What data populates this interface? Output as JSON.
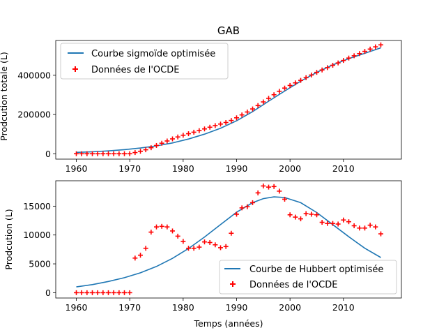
{
  "chart_data": [
    {
      "type": "line",
      "title": "GAB",
      "xlabel": "",
      "ylabel": "Prodcution totale (L)",
      "xlim": [
        1956.15,
        2020.85
      ],
      "ylim": [
        -27500,
        577500
      ],
      "xticks": [
        1960,
        1970,
        1980,
        1990,
        2000,
        2010
      ],
      "xtick_labels": [
        "1960",
        "1970",
        "1980",
        "1990",
        "2000",
        "2010"
      ],
      "yticks": [
        0,
        200000,
        400000
      ],
      "ytick_labels": [
        "0",
        "200000",
        "400000"
      ],
      "grid": false,
      "legend_position": "top-left",
      "series": [
        {
          "name": "Courbe sigmoïde optimisée",
          "style": "line",
          "color": "#1f77b4",
          "x": [
            1960,
            1963,
            1966,
            1969,
            1972,
            1975,
            1978,
            1981,
            1984,
            1987,
            1990,
            1993,
            1996,
            1999,
            2002,
            2005,
            2008,
            2011,
            2014,
            2017
          ],
          "values": [
            7000,
            10000,
            14500,
            21000,
            29000,
            40000,
            55000,
            75000,
            100000,
            130000,
            168000,
            215000,
            268000,
            320000,
            370000,
            415000,
            453000,
            485000,
            512000,
            540000
          ]
        },
        {
          "name": "Données de l'OCDE",
          "style": "marker-plus",
          "color": "#ff0000",
          "x": [
            1960,
            1961,
            1962,
            1963,
            1964,
            1965,
            1966,
            1967,
            1968,
            1969,
            1970,
            1971,
            1972,
            1973,
            1974,
            1975,
            1976,
            1977,
            1978,
            1979,
            1980,
            1981,
            1982,
            1983,
            1984,
            1985,
            1986,
            1987,
            1988,
            1989,
            1990,
            1991,
            1992,
            1993,
            1994,
            1995,
            1996,
            1997,
            1998,
            1999,
            2000,
            2001,
            2002,
            2003,
            2004,
            2005,
            2006,
            2007,
            2008,
            2009,
            2010,
            2011,
            2012,
            2013,
            2014,
            2015,
            2016,
            2017
          ],
          "values": [
            0,
            0,
            0,
            0,
            0,
            0,
            0,
            0,
            0,
            0,
            0,
            6000,
            12500,
            20200,
            30700,
            42100,
            53600,
            65000,
            75700,
            85500,
            94400,
            102100,
            109800,
            117700,
            126500,
            135200,
            143500,
            151300,
            159300,
            169600,
            183200,
            197900,
            212800,
            228400,
            245700,
            264200,
            282500,
            300900,
            318500,
            334700,
            348200,
            361300,
            374100,
            387800,
            401400,
            414900,
            427100,
            439100,
            451100,
            463000,
            475600,
            487900,
            499500,
            510700,
            521900,
            533600,
            545000,
            555200
          ]
        }
      ]
    },
    {
      "type": "line",
      "title": "",
      "xlabel": "Temps (années)",
      "ylabel": "Prodcution (L)",
      "xlim": [
        1956.15,
        2020.85
      ],
      "ylim": [
        -920,
        19400
      ],
      "xticks": [
        1960,
        1970,
        1980,
        1990,
        2000,
        2010
      ],
      "xtick_labels": [
        "1960",
        "1970",
        "1980",
        "1990",
        "2000",
        "2010"
      ],
      "yticks": [
        0,
        5000,
        10000,
        15000
      ],
      "ytick_labels": [
        "0",
        "5000",
        "10000",
        "15000"
      ],
      "grid": false,
      "legend_position": "bottom-right",
      "series": [
        {
          "name": "Courbe de Hubbert optimisée",
          "style": "line",
          "color": "#1f77b4",
          "x": [
            1960,
            1963,
            1966,
            1969,
            1972,
            1975,
            1978,
            1981,
            1984,
            1987,
            1990,
            1993,
            1995,
            1997,
            1999,
            2002,
            2005,
            2008,
            2011,
            2014,
            2017
          ],
          "values": [
            1000,
            1400,
            1950,
            2600,
            3450,
            4550,
            5950,
            7650,
            9650,
            11800,
            13950,
            15600,
            16300,
            16600,
            16500,
            15600,
            13900,
            11800,
            9700,
            7700,
            6100
          ]
        },
        {
          "name": "Données de l'OCDE",
          "style": "marker-plus",
          "color": "#ff0000",
          "x": [
            1960,
            1961,
            1962,
            1963,
            1964,
            1965,
            1966,
            1967,
            1968,
            1969,
            1970,
            1971,
            1972,
            1973,
            1974,
            1975,
            1976,
            1977,
            1978,
            1979,
            1980,
            1981,
            1982,
            1983,
            1984,
            1985,
            1986,
            1987,
            1988,
            1989,
            1990,
            1991,
            1992,
            1993,
            1994,
            1995,
            1996,
            1997,
            1998,
            1999,
            2000,
            2001,
            2002,
            2003,
            2004,
            2005,
            2006,
            2007,
            2008,
            2009,
            2010,
            2011,
            2012,
            2013,
            2014,
            2015,
            2016,
            2017
          ],
          "values": [
            0,
            0,
            0,
            0,
            0,
            0,
            0,
            0,
            0,
            0,
            0,
            6000,
            6500,
            7700,
            10500,
            11400,
            11500,
            11400,
            10700,
            9800,
            8900,
            7700,
            7700,
            7900,
            8800,
            8700,
            8300,
            7800,
            8000,
            10300,
            13600,
            14700,
            14900,
            15600,
            17300,
            18500,
            18300,
            18400,
            17600,
            16200,
            13500,
            13100,
            12800,
            13700,
            13600,
            13500,
            12200,
            12000,
            12000,
            11900,
            12600,
            12300,
            11600,
            11200,
            11200,
            11700,
            11400,
            10200
          ]
        }
      ]
    }
  ]
}
